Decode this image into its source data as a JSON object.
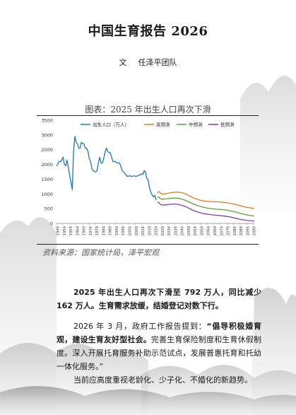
{
  "doc": {
    "title": "中国生育报告 2026",
    "byline_prefix": "文",
    "byline_author": "任泽平团队"
  },
  "figure": {
    "caption": "图表：2025 年出生人口再次下滑",
    "source": "资料来源：国家统计局，泽平宏观"
  },
  "body": {
    "p1": "2025 年出生人口再次下滑至 792 万人，同比减少 162 万人。生育需求放缓，结婚登记对数下行。",
    "p2_lead": "2026 年 3 月，政府工作报告提到：",
    "p2_bold": "“倡导积极婚育观，建设生育友好型社会。",
    "p2_rest": "完善生育保险制度和生育休假制度。深入开展托育服务补助示范试点，发展普惠托育和托幼一体化服务。”",
    "p3": "当前应高度重视老龄化、少子化、不婚化的新趋势。"
  },
  "chart_data": {
    "type": "line",
    "title": "",
    "xlabel": "",
    "ylabel": "",
    "ylim": [
      0,
      3500
    ],
    "yticks": [
      0,
      500,
      1000,
      1500,
      2000,
      2500,
      3000,
      3500
    ],
    "xlim": [
      1949,
      2100
    ],
    "xtick_labels": [
      "1949",
      "1954",
      "1959",
      "1964",
      "1969",
      "1974",
      "1979",
      "1984",
      "1989",
      "1994",
      "1999",
      "2004",
      "2009",
      "2014",
      "2019",
      "2024",
      "2029",
      "2034",
      "2039",
      "2044",
      "2049",
      "2054",
      "2059",
      "2064",
      "2069",
      "2074",
      "2079",
      "2084",
      "2089",
      "2094",
      "2099"
    ],
    "legend_position": "top",
    "grid": false,
    "series": [
      {
        "name": "出生人口（万人）",
        "color": "#1f77b4",
        "points": [
          [
            1949,
            1950
          ],
          [
            1950,
            2020
          ],
          [
            1951,
            2100
          ],
          [
            1952,
            2100
          ],
          [
            1953,
            2150
          ],
          [
            1954,
            2250
          ],
          [
            1955,
            2000
          ],
          [
            1956,
            1950
          ],
          [
            1957,
            2150
          ],
          [
            1958,
            1900
          ],
          [
            1959,
            1650
          ],
          [
            1960,
            1400
          ],
          [
            1961,
            1150
          ],
          [
            1962,
            2450
          ],
          [
            1963,
            2950
          ],
          [
            1964,
            2750
          ],
          [
            1965,
            2700
          ],
          [
            1966,
            2550
          ],
          [
            1967,
            2550
          ],
          [
            1968,
            2750
          ],
          [
            1969,
            2700
          ],
          [
            1970,
            2700
          ],
          [
            1971,
            2550
          ],
          [
            1972,
            2550
          ],
          [
            1973,
            2450
          ],
          [
            1974,
            2200
          ],
          [
            1975,
            2100
          ],
          [
            1976,
            1850
          ],
          [
            1977,
            1800
          ],
          [
            1978,
            1750
          ],
          [
            1979,
            1750
          ],
          [
            1980,
            1800
          ],
          [
            1981,
            2050
          ],
          [
            1982,
            2250
          ],
          [
            1983,
            2050
          ],
          [
            1984,
            2050
          ],
          [
            1985,
            2200
          ],
          [
            1986,
            2400
          ],
          [
            1987,
            2550
          ],
          [
            1988,
            2450
          ],
          [
            1989,
            2400
          ],
          [
            1990,
            2400
          ],
          [
            1991,
            2250
          ],
          [
            1992,
            2100
          ],
          [
            1993,
            2100
          ],
          [
            1994,
            2100
          ],
          [
            1995,
            2050
          ],
          [
            1996,
            2050
          ],
          [
            1997,
            2050
          ],
          [
            1998,
            1950
          ],
          [
            1999,
            1800
          ],
          [
            2000,
            1750
          ],
          [
            2001,
            1700
          ],
          [
            2002,
            1650
          ],
          [
            2003,
            1600
          ],
          [
            2004,
            1600
          ],
          [
            2005,
            1620
          ],
          [
            2006,
            1590
          ],
          [
            2007,
            1600
          ],
          [
            2008,
            1610
          ],
          [
            2009,
            1600
          ],
          [
            2010,
            1600
          ],
          [
            2011,
            1610
          ],
          [
            2012,
            1640
          ],
          [
            2013,
            1640
          ],
          [
            2014,
            1690
          ],
          [
            2015,
            1660
          ],
          [
            2016,
            1790
          ],
          [
            2017,
            1730
          ],
          [
            2018,
            1520
          ],
          [
            2019,
            1470
          ],
          [
            2020,
            1200
          ],
          [
            2021,
            1060
          ],
          [
            2022,
            960
          ],
          [
            2023,
            900
          ],
          [
            2024,
            954
          ],
          [
            2025,
            792
          ]
        ]
      },
      {
        "name": "高预测",
        "color": "#e07b2a",
        "points": [
          [
            2026,
            1020
          ],
          [
            2027,
            1080
          ],
          [
            2028,
            1050
          ],
          [
            2029,
            1010
          ],
          [
            2030,
            990
          ],
          [
            2032,
            1000
          ],
          [
            2034,
            1020
          ],
          [
            2036,
            1040
          ],
          [
            2039,
            1060
          ],
          [
            2042,
            1060
          ],
          [
            2045,
            1040
          ],
          [
            2048,
            990
          ],
          [
            2051,
            920
          ],
          [
            2054,
            860
          ],
          [
            2057,
            810
          ],
          [
            2060,
            770
          ],
          [
            2063,
            750
          ],
          [
            2066,
            740
          ],
          [
            2069,
            735
          ],
          [
            2072,
            730
          ],
          [
            2075,
            720
          ],
          [
            2078,
            705
          ],
          [
            2081,
            685
          ],
          [
            2084,
            660
          ],
          [
            2087,
            630
          ],
          [
            2090,
            590
          ],
          [
            2093,
            555
          ],
          [
            2096,
            530
          ],
          [
            2099,
            510
          ],
          [
            2100,
            500
          ]
        ]
      },
      {
        "name": "中预测",
        "color": "#5a9e3a",
        "points": [
          [
            2026,
            880
          ],
          [
            2027,
            890
          ],
          [
            2028,
            860
          ],
          [
            2029,
            830
          ],
          [
            2030,
            820
          ],
          [
            2032,
            830
          ],
          [
            2034,
            840
          ],
          [
            2036,
            850
          ],
          [
            2039,
            860
          ],
          [
            2042,
            850
          ],
          [
            2045,
            820
          ],
          [
            2048,
            770
          ],
          [
            2051,
            710
          ],
          [
            2054,
            650
          ],
          [
            2057,
            600
          ],
          [
            2060,
            560
          ],
          [
            2063,
            530
          ],
          [
            2066,
            505
          ],
          [
            2069,
            490
          ],
          [
            2072,
            480
          ],
          [
            2075,
            470
          ],
          [
            2078,
            455
          ],
          [
            2081,
            435
          ],
          [
            2084,
            405
          ],
          [
            2087,
            370
          ],
          [
            2090,
            330
          ],
          [
            2093,
            300
          ],
          [
            2096,
            275
          ],
          [
            2099,
            255
          ],
          [
            2100,
            250
          ]
        ]
      },
      {
        "name": "低预测",
        "color": "#7b3f9e",
        "points": [
          [
            2026,
            720
          ],
          [
            2027,
            710
          ],
          [
            2028,
            660
          ],
          [
            2029,
            630
          ],
          [
            2030,
            620
          ],
          [
            2032,
            630
          ],
          [
            2034,
            640
          ],
          [
            2036,
            650
          ],
          [
            2039,
            660
          ],
          [
            2042,
            645
          ],
          [
            2045,
            610
          ],
          [
            2048,
            560
          ],
          [
            2051,
            495
          ],
          [
            2054,
            430
          ],
          [
            2057,
            385
          ],
          [
            2060,
            345
          ],
          [
            2063,
            320
          ],
          [
            2066,
            300
          ],
          [
            2069,
            285
          ],
          [
            2072,
            275
          ],
          [
            2075,
            260
          ],
          [
            2078,
            245
          ],
          [
            2081,
            225
          ],
          [
            2084,
            195
          ],
          [
            2087,
            160
          ],
          [
            2090,
            130
          ],
          [
            2093,
            110
          ],
          [
            2096,
            95
          ],
          [
            2099,
            85
          ],
          [
            2100,
            80
          ]
        ]
      }
    ]
  }
}
